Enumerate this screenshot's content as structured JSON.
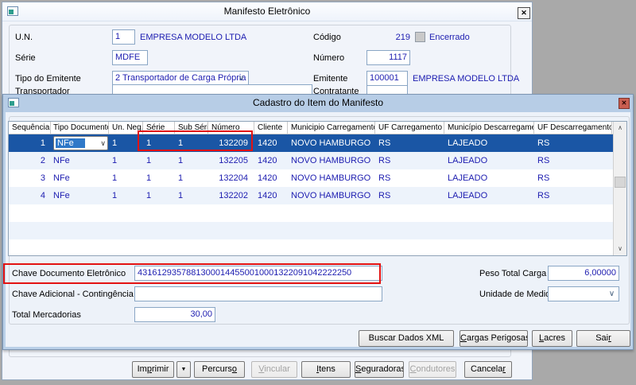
{
  "colors": {
    "selected_row": "#1a56a5",
    "annotation_red": "#e31212",
    "value_text": "#1c1cb0",
    "front_titlebar": "#b7cde6"
  },
  "back_window": {
    "title": "Manifesto Eletrônico",
    "close_icon": "✕",
    "fields": {
      "un_label": "U.N.",
      "un_value": "1",
      "un_desc": "EMPRESA MODELO LTDA",
      "serie_label": "Série",
      "serie_value": "MDFE",
      "tipo_emitente_label": "Tipo do Emitente",
      "tipo_emitente_value": "2 Transportador de Carga Própria",
      "codigo_label": "Código",
      "codigo_value": "219",
      "encerrado_label": "Encerrado",
      "numero_label": "Número",
      "numero_value": "1117",
      "emitente_label": "Emitente",
      "emitente_value": "100001",
      "emitente_desc": "EMPRESA MODELO LTDA",
      "partial_left_label": "Transportador",
      "partial_right_label": "Contratante"
    },
    "dropdown_arrow": "▼",
    "buttons": [
      {
        "t": "Imprimir",
        "u": 2
      },
      {
        "t": "Percurso",
        "u": 7
      },
      {
        "t": "Vincular",
        "u": 0
      },
      {
        "t": "Itens",
        "u": 0
      },
      {
        "t": "Seguradoras",
        "u": 0
      },
      {
        "t": "Condutores",
        "u": 0
      },
      {
        "t": "Cancelar",
        "u": 7
      }
    ]
  },
  "front_window": {
    "title": "Cadastro do Item do Manifesto",
    "close_icon": "✕",
    "combo_arrow": "∨",
    "scroll_up": "∧",
    "scroll_down": "∨",
    "grid": {
      "headers": [
        "Sequência",
        "Tipo Documento",
        "Un. Neg.",
        "Série",
        "Sub Série",
        "Número",
        "Cliente",
        "Municipio Carregamento",
        "UF Carregamento",
        "Município Descarregamento",
        "UF Descarregamento"
      ],
      "rows": [
        {
          "seq": "1",
          "tipo": "NFe",
          "un": "1",
          "serie": "1",
          "sub": "1",
          "numero": "132209",
          "cliente": "1420",
          "mun_carrega": "NOVO HAMBURGO",
          "uf_carrega": "RS",
          "mun_descarrega": "LAJEADO",
          "uf_descarrega": "RS"
        },
        {
          "seq": "2",
          "tipo": "NFe",
          "un": "1",
          "serie": "1",
          "sub": "1",
          "numero": "132205",
          "cliente": "1420",
          "mun_carrega": "NOVO HAMBURGO",
          "uf_carrega": "RS",
          "mun_descarrega": "LAJEADO",
          "uf_descarrega": "RS"
        },
        {
          "seq": "3",
          "tipo": "NFe",
          "un": "1",
          "serie": "1",
          "sub": "1",
          "numero": "132204",
          "cliente": "1420",
          "mun_carrega": "NOVO HAMBURGO",
          "uf_carrega": "RS",
          "mun_descarrega": "LAJEADO",
          "uf_descarrega": "RS"
        },
        {
          "seq": "4",
          "tipo": "NFe",
          "un": "1",
          "serie": "1",
          "sub": "1",
          "numero": "132202",
          "cliente": "1420",
          "mun_carrega": "NOVO HAMBURGO",
          "uf_carrega": "RS",
          "mun_descarrega": "LAJEADO",
          "uf_descarrega": "RS"
        }
      ]
    },
    "fields": {
      "chave_label": "Chave Documento Eletrônico",
      "chave_value": "43161293578813000144550010001322091042222250",
      "chave_adicional_label": "Chave Adicional - Contingência FS",
      "chave_adicional_value": "",
      "total_mercadorias_label": "Total Mercadorias",
      "total_mercadorias_value": "30,00",
      "peso_total_label": "Peso Total Carga",
      "peso_total_value": "6,00000",
      "unidade_medida_label": "Unidade de Medida",
      "unidade_medida_value": ""
    },
    "buttons": [
      {
        "t": "Buscar Dados XML",
        "u": -1
      },
      {
        "t": "Cargas Perigosas",
        "u": 0
      },
      {
        "t": "Lacres",
        "u": 0
      },
      {
        "t": "Sair",
        "u": 3
      }
    ]
  }
}
